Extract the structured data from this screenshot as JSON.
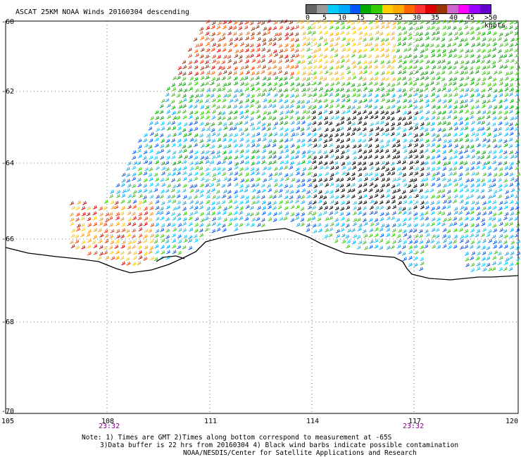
{
  "title": "ASCAT 25KM NOAA Winds 20160304 descending",
  "legend": {
    "colors": [
      "#666666",
      "#999999",
      "#00ccff",
      "#00aaff",
      "#0055ff",
      "#00aa00",
      "#33cc00",
      "#ffcc00",
      "#ffaa00",
      "#ff6600",
      "#ff3333",
      "#dd0000",
      "#993300",
      "#cc66cc",
      "#ff00ff",
      "#9900ff",
      "#6600cc"
    ],
    "labels": [
      "0",
      "5",
      "10",
      "15",
      "20",
      "25",
      "30",
      "35",
      "40",
      "45",
      ">50 knots"
    ]
  },
  "lat_labels": [
    "-60",
    "-62",
    "-64",
    "-66",
    "-68",
    "-70"
  ],
  "lon_labels": [
    "105",
    "108",
    "111",
    "114",
    "117",
    "120"
  ],
  "time_labels": [
    "23:32",
    "23:32"
  ],
  "notes": [
    "Note: 1) Times are GMT 2)Times along bottom correspond to measurement at -65S",
    "3)Data buffer is 22 hrs from 20160304 4) Black wind barbs indicate possible contamination",
    "NOAA/NESDIS/Center for Satellite Applications and Research"
  ]
}
